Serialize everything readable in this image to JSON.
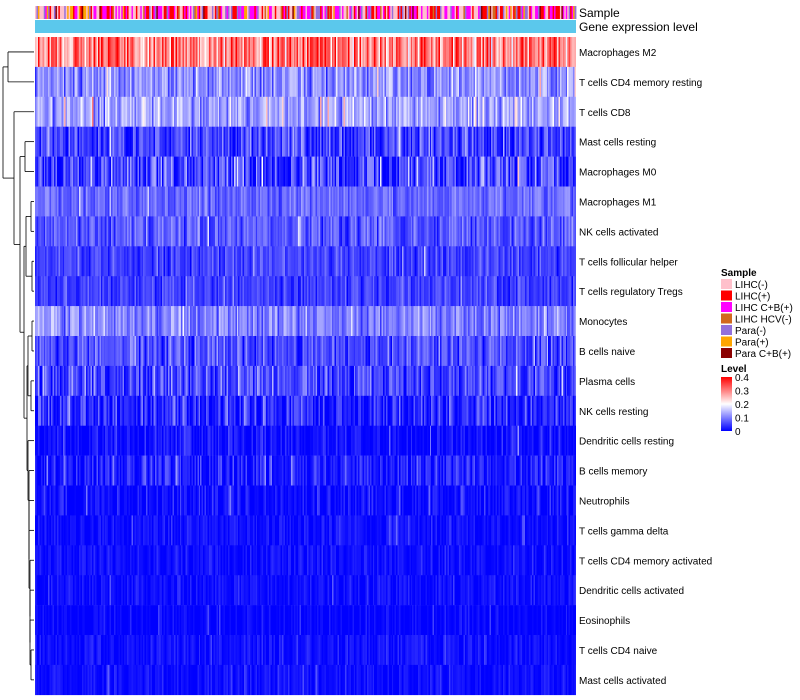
{
  "chart_data": {
    "type": "heatmap",
    "annotation_tracks": [
      {
        "key": "sample",
        "label": "Sample"
      },
      {
        "key": "level",
        "label": "Gene expression level"
      }
    ],
    "rows": [
      {
        "name": "Macrophages M2",
        "mean": 0.3,
        "spread": 0.08
      },
      {
        "name": "T cells CD4 memory resting",
        "mean": 0.11,
        "spread": 0.05
      },
      {
        "name": "T cells CD8",
        "mean": 0.13,
        "spread": 0.05
      },
      {
        "name": "Mast cells resting",
        "mean": 0.05,
        "spread": 0.05
      },
      {
        "name": "Macrophages M0",
        "mean": 0.05,
        "spread": 0.07
      },
      {
        "name": "Macrophages M1",
        "mean": 0.08,
        "spread": 0.03
      },
      {
        "name": "NK cells activated",
        "mean": 0.07,
        "spread": 0.04
      },
      {
        "name": "T cells follicular helper",
        "mean": 0.05,
        "spread": 0.03
      },
      {
        "name": "T cells regulatory  Tregs",
        "mean": 0.05,
        "spread": 0.03
      },
      {
        "name": "Monocytes",
        "mean": 0.1,
        "spread": 0.04
      },
      {
        "name": "B cells naive",
        "mean": 0.06,
        "spread": 0.04
      },
      {
        "name": "Plasma cells",
        "mean": 0.05,
        "spread": 0.05
      },
      {
        "name": "NK cells resting",
        "mean": 0.03,
        "spread": 0.05
      },
      {
        "name": "Dendritic cells resting",
        "mean": 0.01,
        "spread": 0.03
      },
      {
        "name": "B cells memory",
        "mean": 0.02,
        "spread": 0.04
      },
      {
        "name": "Neutrophils",
        "mean": 0.01,
        "spread": 0.03
      },
      {
        "name": "T cells gamma delta",
        "mean": 0.01,
        "spread": 0.02
      },
      {
        "name": "T cells CD4 memory activated",
        "mean": 0.01,
        "spread": 0.02
      },
      {
        "name": "Dendritic cells activated",
        "mean": 0.01,
        "spread": 0.02
      },
      {
        "name": "Eosinophils",
        "mean": 0.0,
        "spread": 0.02
      },
      {
        "name": "T cells CD4 naive",
        "mean": 0.01,
        "spread": 0.02
      },
      {
        "name": "Mast cells activated",
        "mean": 0.01,
        "spread": 0.02
      }
    ],
    "n_samples": 370,
    "color_scale": {
      "range": [
        0,
        0.4
      ],
      "stops": [
        {
          "value": 0,
          "color": "#0000ff"
        },
        {
          "value": 0.2,
          "color": "#ffffff"
        },
        {
          "value": 0.4,
          "color": "#ff0000"
        }
      ]
    },
    "legend_sample": {
      "title": "Sample",
      "entries": [
        {
          "label": "LIHC(-)",
          "color": "#ffc0cb"
        },
        {
          "label": "LIHC(+)",
          "color": "#ff0000"
        },
        {
          "label": "LIHC C+B(+)",
          "color": "#ff00ff"
        },
        {
          "label": "LIHC HCV(-)",
          "color": "#d2691e"
        },
        {
          "label": "Para(-)",
          "color": "#9370db"
        },
        {
          "label": "Para(+)",
          "color": "#ffa500"
        },
        {
          "label": "Para C+B(+)",
          "color": "#8b0000"
        }
      ]
    },
    "legend_level": {
      "title": "Level",
      "ticks": [
        {
          "value": 0.4,
          "label": "0.4"
        },
        {
          "value": 0.3,
          "label": "0.3"
        },
        {
          "value": 0.2,
          "label": "0.2"
        },
        {
          "value": 0.1,
          "label": "0.1"
        },
        {
          "value": 0,
          "label": "0"
        }
      ]
    },
    "level_track_color": "#5bc8ec",
    "dendrogram_color": "#000000"
  }
}
